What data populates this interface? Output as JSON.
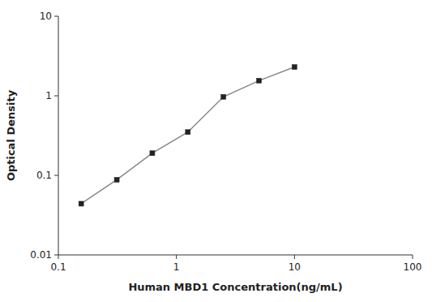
{
  "chart_data": {
    "type": "line",
    "x": [
      0.156,
      0.3125,
      0.625,
      1.25,
      2.5,
      5.0,
      10.0
    ],
    "values": [
      0.044,
      0.088,
      0.19,
      0.35,
      0.97,
      1.55,
      2.3
    ],
    "xlabel": "Human MBD1 Concentration(ng/mL)",
    "ylabel": "Optical Density",
    "xlim": [
      0.1,
      100
    ],
    "ylim": [
      0.01,
      10
    ],
    "xticks": [
      0.1,
      1,
      10,
      100
    ],
    "yticks": [
      0.01,
      0.1,
      1,
      10
    ],
    "log": true,
    "grid": false,
    "color": "#888888",
    "marker": "square"
  }
}
